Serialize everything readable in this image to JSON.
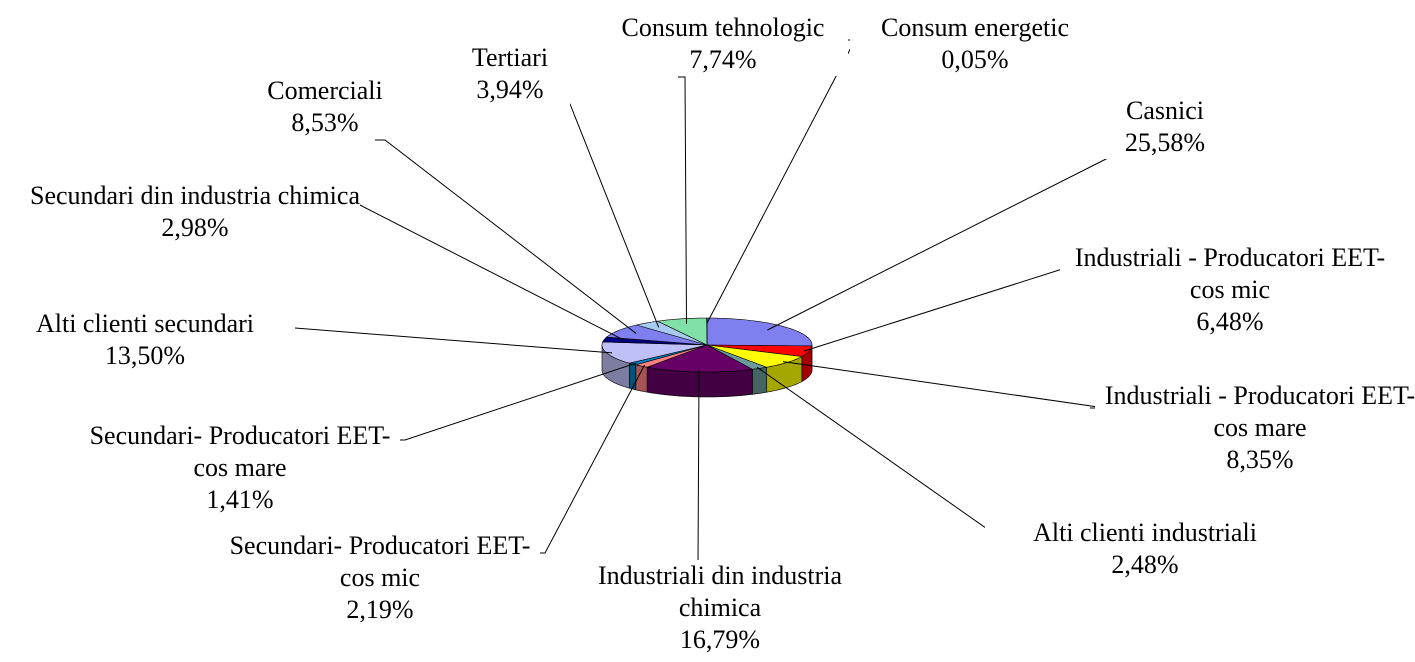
{
  "chart_data": {
    "type": "pie",
    "categories": [
      "Casnici",
      "Industriali - Producatori EET-cos mic",
      "Industriali - Producatori EET-cos mare",
      "Alti clienti industriali",
      "Industriali din industria chimica",
      "Secundari- Producatori EET-cos mic",
      "Secundari- Producatori EET-cos mare",
      "Alti clienti secundari",
      "Secundari din industria chimica",
      "Comerciali",
      "Tertiari",
      "Consum tehnologic",
      "Consum energetic"
    ],
    "values": [
      25.58,
      6.48,
      8.35,
      2.48,
      16.79,
      2.19,
      1.41,
      13.5,
      2.98,
      8.53,
      3.94,
      7.74,
      0.05
    ],
    "value_labels": [
      "25,58%",
      "6,48%",
      "8,35%",
      "2,48%",
      "16,79%",
      "2,19%",
      "1,41%",
      "13,50%",
      "2,98%",
      "8,53%",
      "3,94%",
      "7,74%",
      "0,05%"
    ],
    "colors": [
      "#7f7fef",
      "#ff0000",
      "#ffff00",
      "#6a9a9a",
      "#660066",
      "#ff8080",
      "#0080c0",
      "#c0c0f8",
      "#000080",
      "#7f7fef",
      "#a6caf0",
      "#80e0a8",
      "#ff80c0"
    ]
  }
}
